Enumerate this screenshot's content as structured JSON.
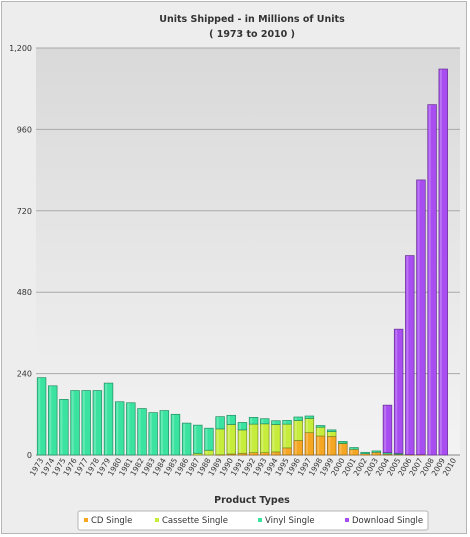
{
  "chart_data": {
    "type": "bar",
    "stacked": true,
    "title": "Units Shipped - in Millions of Units",
    "subtitle": "( 1973 to 2010 )",
    "xlabel": "Product Types",
    "ylabel": "",
    "ylim": [
      0,
      1200
    ],
    "yticks": [
      "0",
      "240",
      "480",
      "720",
      "960",
      "1,200"
    ],
    "grid": true,
    "legend_position": "bottom",
    "categories": [
      "1973",
      "1974",
      "1975",
      "1976",
      "1977",
      "1978",
      "1979",
      "1980",
      "1981",
      "1982",
      "1983",
      "1984",
      "1985",
      "1986",
      "1987",
      "1988",
      "1989",
      "1990",
      "1991",
      "1992",
      "1993",
      "1994",
      "1995",
      "1996",
      "1997",
      "1998",
      "1999",
      "2000",
      "2001",
      "2002",
      "2003",
      "2004",
      "2005",
      "2006",
      "2007",
      "2008",
      "2009",
      "2010"
    ],
    "series": [
      {
        "name": "CD Single",
        "color": "#f5a623",
        "values": [
          0,
          0,
          0,
          0,
          0,
          0,
          0,
          0,
          0,
          0,
          0,
          0,
          0,
          0,
          0,
          0,
          1,
          3,
          5,
          7,
          7,
          9,
          21,
          43,
          66,
          56,
          55,
          34,
          17,
          4,
          8,
          3,
          2,
          1,
          1,
          0,
          0,
          0
        ]
      },
      {
        "name": "Cassette Single",
        "color": "#c6ec3c",
        "values": [
          0,
          0,
          0,
          0,
          0,
          0,
          0,
          0,
          0,
          0,
          0,
          0,
          0,
          0,
          5,
          14,
          76,
          87,
          69,
          84,
          85,
          81,
          70,
          59,
          42,
          26,
          14,
          1,
          0,
          0,
          0,
          0,
          0,
          0,
          0,
          0,
          0,
          0
        ]
      },
      {
        "name": "Vinyl Single",
        "color": "#3be3a0",
        "values": [
          228,
          204,
          164,
          190,
          190,
          190,
          212,
          157,
          154,
          137,
          125,
          131,
          120,
          94,
          83,
          65,
          36,
          27,
          22,
          20,
          15,
          11,
          11,
          10,
          7,
          5,
          5,
          5,
          5,
          4,
          4,
          4,
          3,
          0,
          0,
          0,
          0,
          0
        ]
      },
      {
        "name": "Download Single",
        "color": "#a84df0",
        "values": [
          0,
          0,
          0,
          0,
          0,
          0,
          0,
          0,
          0,
          0,
          0,
          0,
          0,
          0,
          0,
          0,
          0,
          0,
          0,
          0,
          0,
          0,
          0,
          0,
          0,
          0,
          0,
          0,
          0,
          0,
          0,
          140,
          366,
          587,
          810,
          1033,
          1138,
          0
        ]
      }
    ]
  }
}
